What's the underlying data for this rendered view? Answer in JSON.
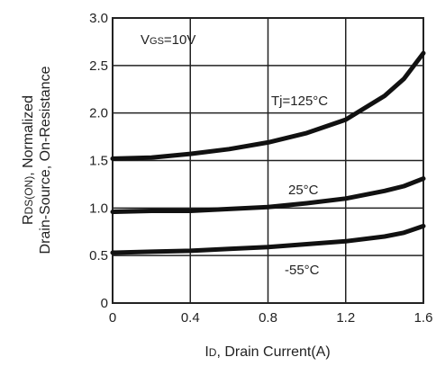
{
  "chart_data": {
    "type": "line",
    "xlabel": {
      "main": "I",
      "sub": "D",
      "rest": ", Drain Current(A)"
    },
    "ylabel": {
      "line1_main": "R",
      "line1_sub": "DS(ON)",
      "line1_rest": ", Normalized",
      "line2": "Drain-Source, On-Resistance"
    },
    "xlim": [
      0,
      1.6
    ],
    "ylim": [
      0,
      3.0
    ],
    "xticks": [
      "0",
      "0.4",
      "0.8",
      "1.2",
      "1.6"
    ],
    "yticks": [
      "0",
      "0.5",
      "1.0",
      "1.5",
      "2.0",
      "2.5",
      "3.0"
    ],
    "grid": true,
    "condition": {
      "main": "V",
      "sub": "GS",
      "rest": "=10V"
    },
    "series": [
      {
        "name": "Tj=125°C",
        "x": [
          0,
          0.2,
          0.4,
          0.6,
          0.8,
          1.0,
          1.2,
          1.4,
          1.5,
          1.6
        ],
        "values": [
          1.52,
          1.53,
          1.57,
          1.62,
          1.69,
          1.79,
          1.93,
          2.18,
          2.36,
          2.63
        ]
      },
      {
        "name": "25°C",
        "x": [
          0,
          0.2,
          0.4,
          0.6,
          0.8,
          1.0,
          1.2,
          1.4,
          1.5,
          1.6
        ],
        "values": [
          0.96,
          0.97,
          0.97,
          0.99,
          1.01,
          1.05,
          1.1,
          1.18,
          1.23,
          1.31
        ]
      },
      {
        "name": "-55°C",
        "x": [
          0,
          0.2,
          0.4,
          0.6,
          0.8,
          1.0,
          1.2,
          1.4,
          1.5,
          1.6
        ],
        "values": [
          0.53,
          0.54,
          0.55,
          0.57,
          0.59,
          0.62,
          0.65,
          0.7,
          0.74,
          0.81
        ]
      }
    ]
  }
}
